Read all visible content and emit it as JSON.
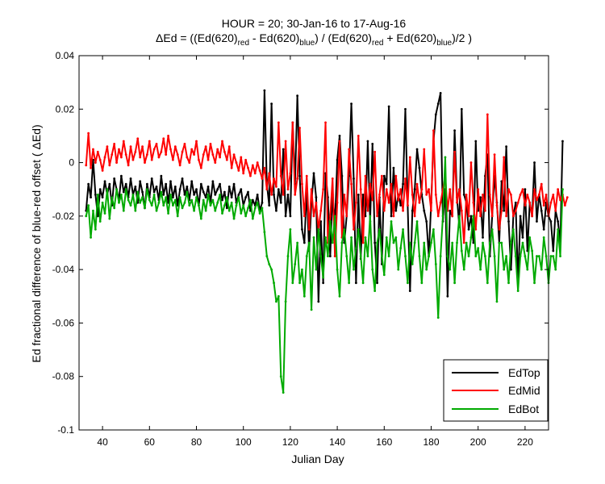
{
  "chart_data": {
    "type": "line",
    "title_line1": "HOUR = 20; 30-Jan-16 to 17-Aug-16",
    "title_line2": {
      "prefix": "ΔEd = ((Ed(620)",
      "sub1": "red",
      "mid1": " - Ed(620)",
      "sub2": "blue",
      "mid2": ") / (Ed(620)",
      "sub3": "red",
      "mid3": " + Ed(620)",
      "sub4": "blue",
      "suffix": ")/2  )"
    },
    "xlabel": "Julian Day",
    "ylabel": "Ed fractional difference of blue-red offset ( ΔEd)",
    "xlim": [
      30,
      230
    ],
    "ylim": [
      -0.1,
      0.04
    ],
    "xticks": [
      "40",
      "60",
      "80",
      "100",
      "120",
      "140",
      "160",
      "180",
      "200",
      "220"
    ],
    "yticks": [
      "-0.1",
      "-0.08",
      "-0.06",
      "-0.04",
      "-0.02",
      "0",
      "0.02",
      "0.04"
    ],
    "grid": false,
    "legend_position": "bottom-right",
    "x_start": 33,
    "x_step": 1,
    "series": [
      {
        "name": "EdTop",
        "color": "#000000",
        "values": [
          -0.018,
          -0.008,
          -0.013,
          0.001,
          -0.012,
          -0.02,
          -0.01,
          -0.013,
          -0.007,
          -0.012,
          -0.008,
          -0.016,
          -0.006,
          -0.01,
          -0.014,
          -0.005,
          -0.011,
          -0.008,
          -0.013,
          -0.006,
          -0.012,
          -0.009,
          -0.015,
          -0.007,
          -0.011,
          -0.017,
          -0.008,
          -0.013,
          -0.006,
          -0.011,
          -0.009,
          -0.014,
          -0.005,
          -0.012,
          -0.008,
          -0.015,
          -0.007,
          -0.013,
          -0.009,
          -0.016,
          -0.01,
          -0.006,
          -0.012,
          -0.009,
          -0.014,
          -0.007,
          -0.012,
          -0.01,
          -0.016,
          -0.008,
          -0.011,
          -0.013,
          -0.009,
          -0.015,
          -0.007,
          -0.012,
          -0.01,
          -0.008,
          -0.014,
          -0.011,
          -0.017,
          -0.009,
          -0.013,
          -0.008,
          -0.015,
          -0.012,
          -0.01,
          -0.016,
          -0.013,
          -0.011,
          -0.018,
          -0.014,
          -0.016,
          -0.012,
          -0.018,
          -0.015,
          0.027,
          -0.008,
          -0.016,
          0.022,
          -0.012,
          -0.018,
          -0.01,
          -0.015,
          0.005,
          -0.02,
          -0.012,
          -0.02,
          0.015,
          -0.008,
          0.025,
          -0.005,
          -0.025,
          -0.03,
          -0.01,
          -0.033,
          -0.015,
          -0.004,
          -0.013,
          -0.052,
          -0.022,
          -0.045,
          -0.004,
          -0.013,
          -0.035,
          -0.012,
          -0.023,
          0.001,
          0.01,
          -0.005,
          -0.03,
          -0.02,
          -0.005,
          0.022,
          -0.006,
          -0.045,
          -0.012,
          -0.036,
          -0.012,
          -0.02,
          0.008,
          -0.022,
          0.007,
          -0.03,
          -0.045,
          -0.013,
          -0.038,
          -0.005,
          -0.008,
          0.021,
          -0.02,
          -0.002,
          -0.018,
          -0.012,
          -0.016,
          -0.008,
          0.02,
          -0.016,
          -0.048,
          -0.018,
          -0.01,
          0.005,
          -0.002,
          -0.012,
          -0.018,
          -0.022,
          -0.035,
          -0.015,
          0.008,
          0.018,
          0.022,
          0.026,
          -0.022,
          -0.01,
          -0.05,
          -0.018,
          -0.02,
          0.012,
          -0.013,
          -0.024,
          0.02,
          -0.012,
          -0.015,
          -0.025,
          -0.02,
          -0.03,
          0.008,
          -0.018,
          -0.013,
          -0.028,
          -0.005,
          0.003,
          -0.035,
          -0.02,
          -0.005,
          -0.015,
          -0.03,
          -0.007,
          -0.018,
          0.006,
          -0.022,
          -0.04,
          -0.02,
          -0.015,
          -0.045,
          -0.02,
          -0.028,
          -0.01,
          -0.033,
          -0.015,
          -0.02,
          0.0,
          -0.022,
          -0.012,
          -0.018,
          -0.025,
          -0.015,
          -0.02,
          -0.022,
          -0.033,
          -0.018,
          -0.022,
          -0.03,
          0.008
        ]
      },
      {
        "name": "EdMid",
        "color": "#ff0000",
        "values": [
          -0.001,
          0.011,
          -0.002,
          0.005,
          0.0,
          0.004,
          0.001,
          -0.003,
          0.002,
          0.006,
          -0.001,
          0.003,
          0.007,
          0.0,
          0.005,
          0.002,
          0.008,
          0.003,
          -0.001,
          0.006,
          0.001,
          0.004,
          0.009,
          0.002,
          0.006,
          0.0,
          0.003,
          0.008,
          0.001,
          0.005,
          0.007,
          0.002,
          0.004,
          0.009,
          0.003,
          0.01,
          0.005,
          0.001,
          0.006,
          0.003,
          -0.001,
          0.004,
          0.007,
          0.002,
          0.0,
          0.005,
          0.003,
          0.008,
          0.001,
          -0.002,
          0.003,
          0.006,
          0.001,
          0.007,
          0.003,
          0.0,
          0.005,
          0.002,
          0.008,
          0.004,
          0.001,
          0.006,
          -0.002,
          0.003,
          0.0,
          -0.003,
          0.002,
          -0.004,
          0.001,
          -0.002,
          -0.005,
          -0.001,
          -0.004,
          0.0,
          -0.003,
          -0.006,
          -0.002,
          -0.01,
          -0.004,
          -0.012,
          -0.006,
          -0.009,
          0.015,
          -0.005,
          -0.012,
          0.008,
          -0.01,
          -0.004,
          0.015,
          -0.012,
          -0.006,
          0.013,
          -0.008,
          -0.02,
          -0.005,
          -0.025,
          -0.01,
          -0.02,
          -0.015,
          -0.025,
          -0.018,
          -0.01,
          0.015,
          -0.03,
          -0.02,
          -0.006,
          -0.035,
          -0.015,
          0.008,
          -0.028,
          -0.012,
          -0.02,
          0.005,
          -0.008,
          -0.025,
          -0.015,
          0.01,
          -0.01,
          -0.03,
          -0.005,
          -0.018,
          -0.008,
          -0.014,
          0.004,
          -0.02,
          -0.012,
          -0.005,
          -0.018,
          -0.01,
          -0.015,
          -0.008,
          -0.02,
          -0.005,
          -0.014,
          -0.01,
          -0.018,
          -0.006,
          -0.016,
          0.002,
          -0.012,
          -0.02,
          -0.008,
          -0.015,
          -0.01,
          0.005,
          -0.012,
          -0.01,
          -0.018,
          0.012,
          -0.012,
          -0.02,
          -0.015,
          -0.01,
          -0.005,
          -0.018,
          -0.01,
          -0.02,
          0.004,
          -0.015,
          -0.01,
          -0.018,
          -0.03,
          -0.012,
          -0.02,
          0.0,
          -0.015,
          -0.025,
          -0.01,
          -0.02,
          -0.012,
          -0.018,
          0.018,
          -0.012,
          -0.02,
          0.003,
          -0.016,
          -0.025,
          -0.018,
          0.002,
          -0.02,
          -0.01,
          -0.012,
          -0.02,
          -0.018,
          -0.015,
          -0.012,
          -0.01,
          -0.016,
          -0.012,
          -0.015,
          -0.02,
          -0.01,
          -0.014,
          -0.012,
          -0.008,
          -0.016,
          -0.012,
          -0.02,
          -0.015,
          -0.012,
          -0.018,
          -0.01,
          -0.014,
          -0.012,
          -0.016,
          -0.013
        ]
      },
      {
        "name": "EdBot",
        "color": "#00aa00",
        "values": [
          -0.02,
          -0.016,
          -0.028,
          -0.018,
          -0.025,
          -0.012,
          -0.022,
          -0.015,
          -0.019,
          -0.01,
          -0.021,
          -0.013,
          -0.017,
          -0.01,
          -0.015,
          -0.012,
          -0.018,
          -0.01,
          -0.014,
          -0.016,
          -0.012,
          -0.018,
          -0.011,
          -0.015,
          -0.013,
          -0.017,
          -0.01,
          -0.014,
          -0.016,
          -0.012,
          -0.018,
          -0.015,
          -0.011,
          -0.016,
          -0.013,
          -0.019,
          -0.012,
          -0.016,
          -0.014,
          -0.02,
          -0.013,
          -0.017,
          -0.015,
          -0.011,
          -0.016,
          -0.014,
          -0.018,
          -0.013,
          -0.016,
          -0.021,
          -0.014,
          -0.018,
          -0.012,
          -0.016,
          -0.014,
          -0.018,
          -0.015,
          -0.012,
          -0.019,
          -0.016,
          -0.013,
          -0.018,
          -0.015,
          -0.021,
          -0.016,
          -0.013,
          -0.019,
          -0.016,
          -0.02,
          -0.017,
          -0.014,
          -0.021,
          -0.017,
          -0.015,
          -0.019,
          -0.017,
          -0.026,
          -0.035,
          -0.038,
          -0.04,
          -0.045,
          -0.052,
          -0.05,
          -0.08,
          -0.086,
          -0.052,
          -0.035,
          -0.025,
          -0.045,
          -0.038,
          -0.03,
          -0.045,
          -0.04,
          -0.05,
          -0.035,
          -0.03,
          -0.055,
          -0.028,
          -0.04,
          -0.025,
          -0.035,
          -0.043,
          -0.028,
          -0.035,
          -0.022,
          -0.03,
          -0.02,
          -0.04,
          -0.05,
          -0.03,
          -0.025,
          -0.035,
          -0.045,
          -0.028,
          -0.04,
          -0.032,
          -0.025,
          -0.035,
          -0.045,
          -0.028,
          -0.035,
          -0.02,
          -0.04,
          -0.048,
          -0.03,
          -0.025,
          -0.035,
          -0.042,
          -0.028,
          -0.035,
          -0.022,
          -0.03,
          -0.028,
          -0.04,
          -0.032,
          -0.025,
          -0.035,
          -0.045,
          -0.03,
          -0.038,
          -0.03,
          -0.022,
          -0.035,
          -0.045,
          -0.03,
          -0.04,
          -0.035,
          -0.03,
          -0.025,
          -0.038,
          -0.058,
          -0.035,
          -0.02,
          0.002,
          -0.035,
          -0.04,
          -0.03,
          -0.045,
          -0.03,
          -0.02,
          -0.033,
          -0.04,
          -0.03,
          -0.035,
          -0.028,
          -0.02,
          -0.035,
          -0.032,
          -0.04,
          -0.03,
          -0.035,
          -0.045,
          -0.03,
          -0.025,
          -0.035,
          -0.052,
          -0.03,
          -0.03,
          -0.04,
          -0.035,
          -0.045,
          -0.03,
          -0.025,
          -0.035,
          -0.048,
          -0.035,
          -0.03,
          -0.035,
          -0.04,
          -0.028,
          -0.033,
          -0.045,
          -0.035,
          -0.035,
          -0.04,
          -0.028,
          -0.035,
          -0.045,
          -0.035,
          -0.035,
          -0.04,
          -0.025,
          -0.035,
          -0.01
        ]
      }
    ]
  }
}
